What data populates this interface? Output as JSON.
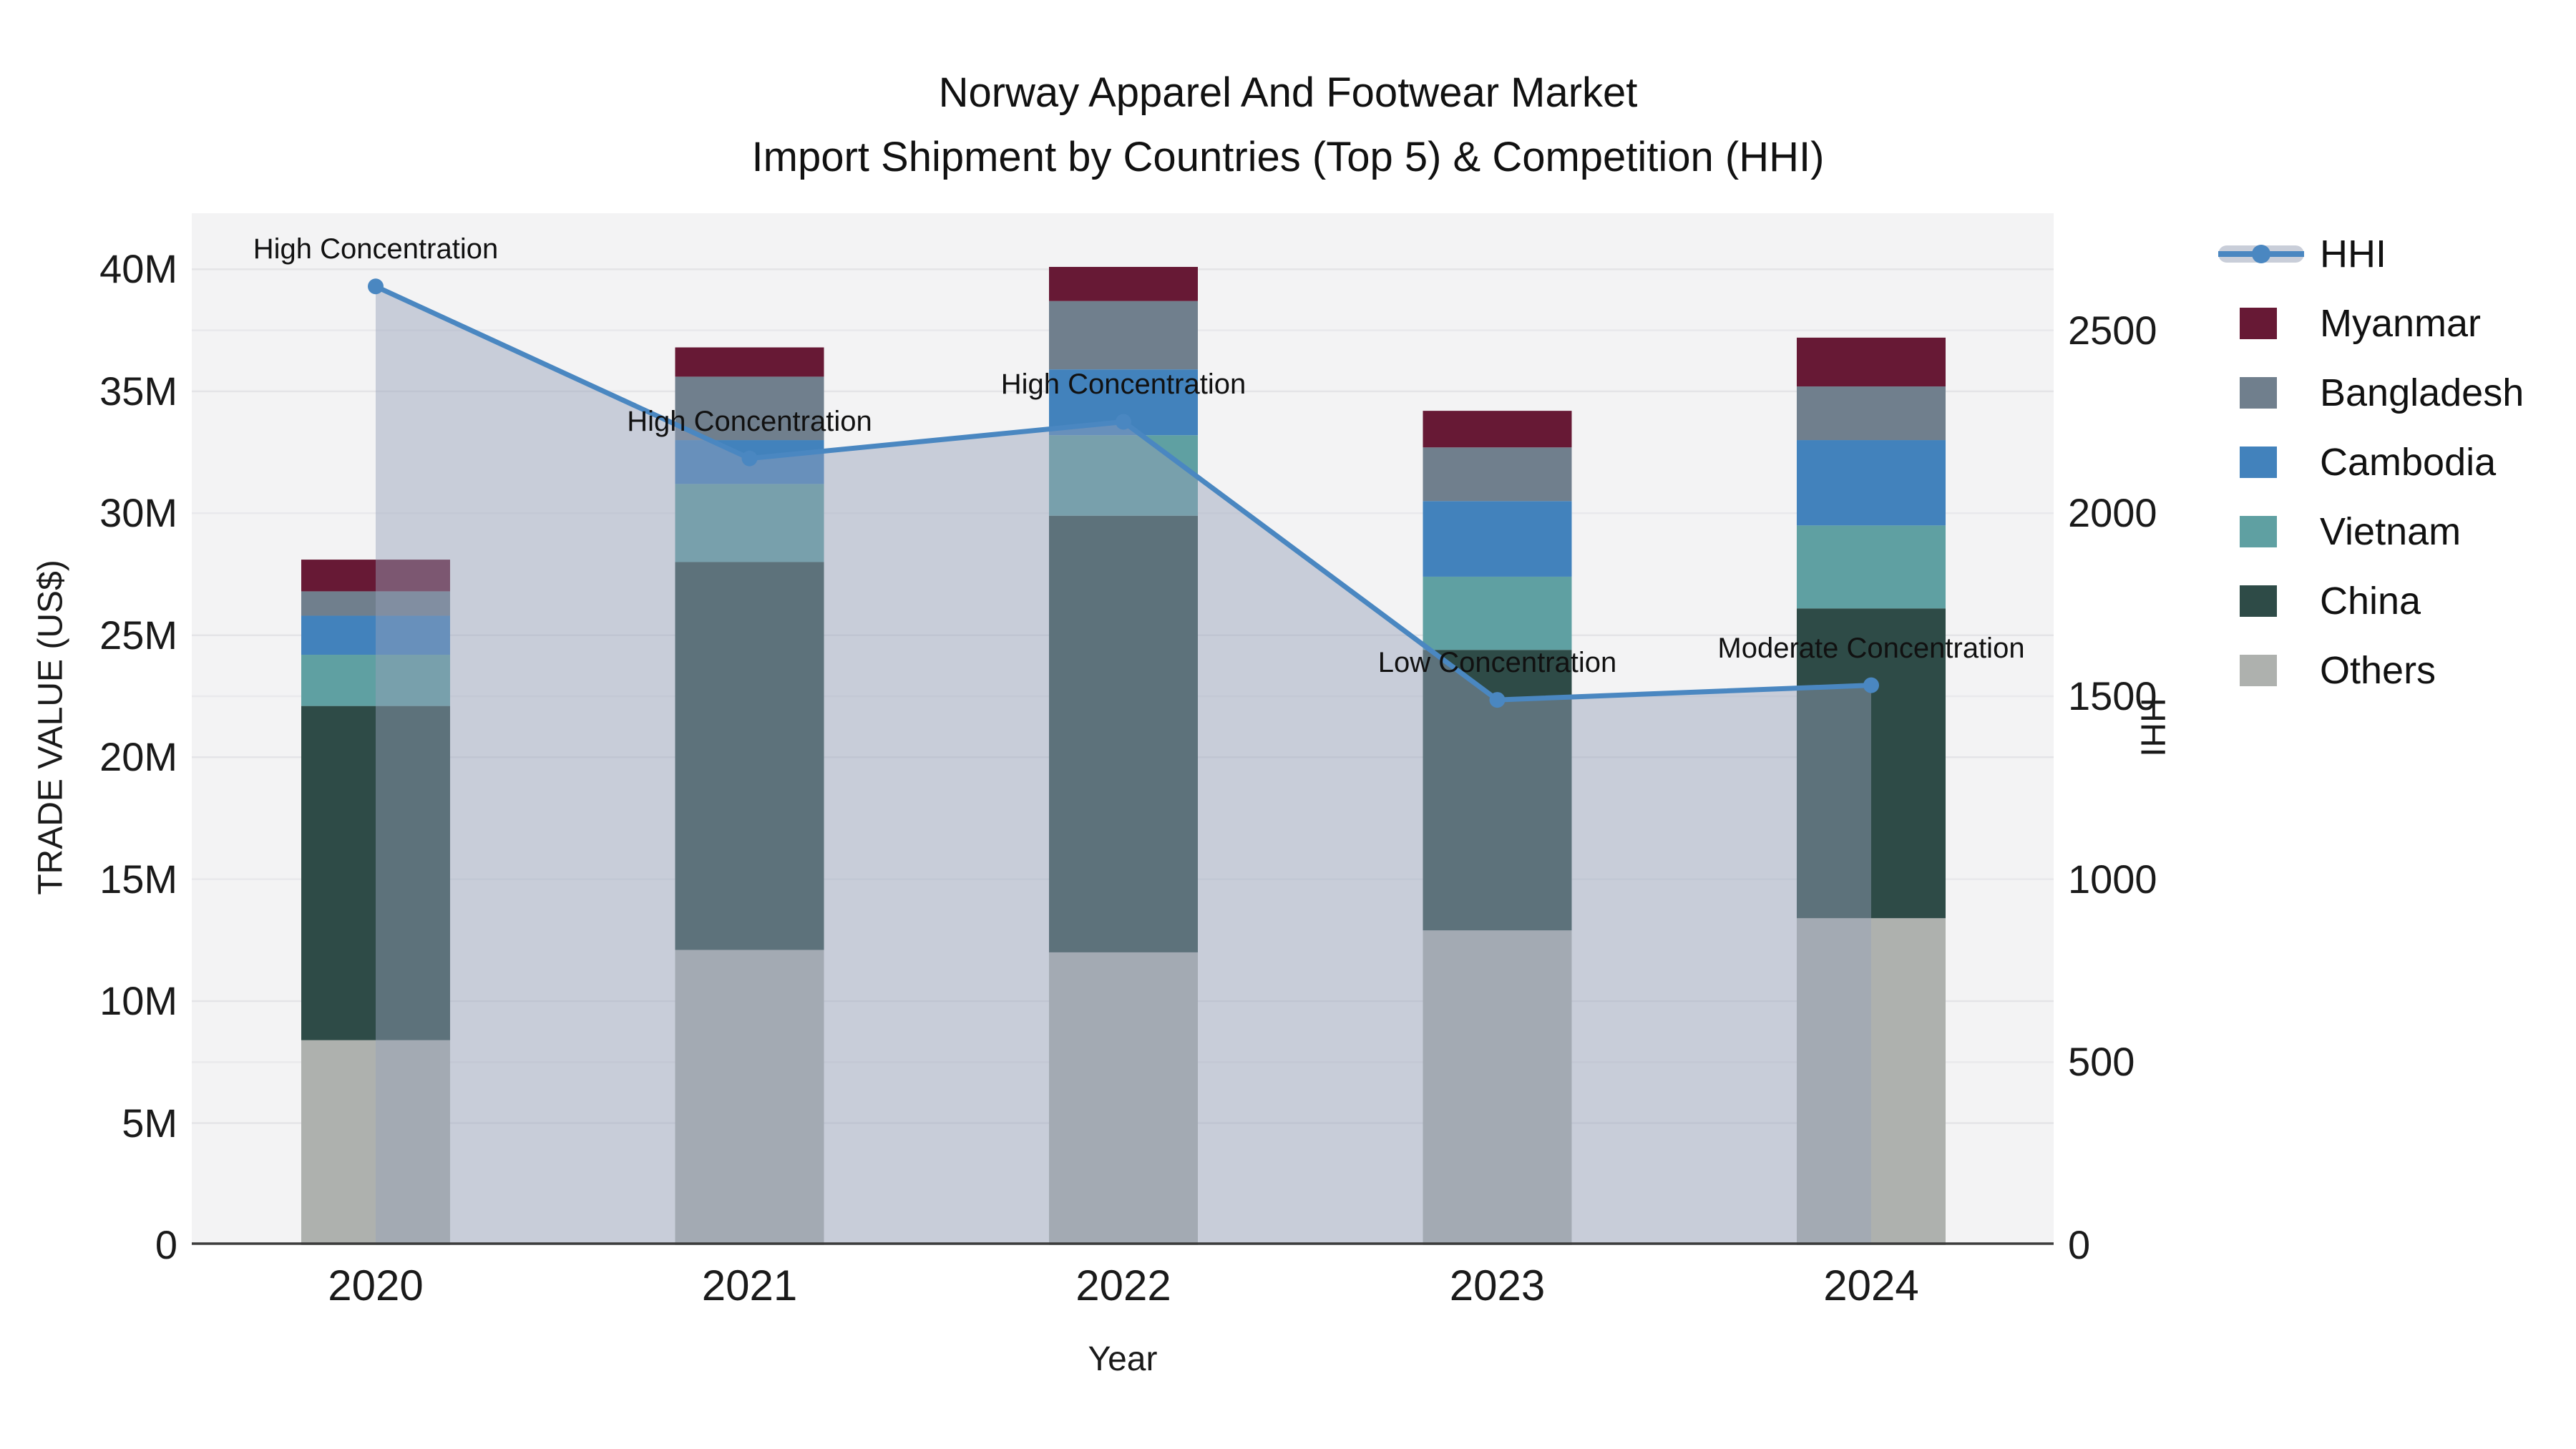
{
  "title": {
    "line1": "Norway Apparel And Footwear Market",
    "line2": "Import Shipment by Countries (Top 5) & Competition (HHI)"
  },
  "axes": {
    "x": {
      "title": "Year",
      "ticks": [
        "2020",
        "2021",
        "2022",
        "2023",
        "2024"
      ]
    },
    "y_left": {
      "title": "TRADE VALUE (US$)",
      "ticks": [
        "0",
        "5M",
        "10M",
        "15M",
        "20M",
        "25M",
        "30M",
        "35M",
        "40M"
      ],
      "tick_values": [
        0,
        5,
        10,
        15,
        20,
        25,
        30,
        35,
        40
      ]
    },
    "y_right": {
      "title": "HHI",
      "ticks": [
        "0",
        "500",
        "1000",
        "1500",
        "2000",
        "2500"
      ],
      "tick_values": [
        0,
        500,
        1000,
        1500,
        2000,
        2500
      ]
    }
  },
  "legend": {
    "items": [
      {
        "label": "HHI",
        "type": "line",
        "color": "#4a87c1",
        "band_color": "#c9ced9"
      },
      {
        "label": "Myanmar",
        "type": "swatch",
        "color": "#671935"
      },
      {
        "label": "Bangladesh",
        "type": "swatch",
        "color": "#707f8d"
      },
      {
        "label": "Cambodia",
        "type": "swatch",
        "color": "#4282bc"
      },
      {
        "label": "Vietnam",
        "type": "swatch",
        "color": "#5fa0a2"
      },
      {
        "label": "China",
        "type": "swatch",
        "color": "#2e4b47"
      },
      {
        "label": "Others",
        "type": "swatch",
        "color": "#aeb1ae"
      }
    ]
  },
  "annotations": [
    {
      "year": "2020",
      "text": "High Concentration"
    },
    {
      "year": "2021",
      "text": "High Concentration"
    },
    {
      "year": "2022",
      "text": "High Concentration"
    },
    {
      "year": "2023",
      "text": "Low Concentration"
    },
    {
      "year": "2024",
      "text": "Moderate Concentration"
    }
  ],
  "chart_data": {
    "type": "bar",
    "subtype": "stacked-bars-with-line",
    "title": "Norway Apparel And Footwear Market — Import Shipment by Countries (Top 5) & Competition (HHI)",
    "categories": [
      "2020",
      "2021",
      "2022",
      "2023",
      "2024"
    ],
    "bar_unit": "million US$",
    "series": [
      {
        "name": "Others",
        "color": "#aeb1ae",
        "values": [
          8.4,
          12.1,
          12.0,
          12.9,
          13.4
        ]
      },
      {
        "name": "China",
        "color": "#2e4b47",
        "values": [
          13.7,
          15.9,
          17.9,
          11.5,
          12.7
        ]
      },
      {
        "name": "Vietnam",
        "color": "#5fa0a2",
        "values": [
          2.1,
          3.2,
          3.3,
          3.0,
          3.4
        ]
      },
      {
        "name": "Cambodia",
        "color": "#4282bc",
        "values": [
          1.6,
          1.8,
          2.7,
          3.1,
          3.5
        ]
      },
      {
        "name": "Bangladesh",
        "color": "#707f8d",
        "values": [
          1.0,
          2.6,
          2.8,
          2.2,
          2.2
        ]
      },
      {
        "name": "Myanmar",
        "color": "#671935",
        "values": [
          1.3,
          1.2,
          1.4,
          1.5,
          2.0
        ]
      }
    ],
    "bar_totals": [
      28.1,
      36.8,
      40.1,
      34.2,
      37.2
    ],
    "line_series": {
      "name": "HHI",
      "color": "#4a87c1",
      "area_fill": "rgba(151,162,185,0.46)",
      "values": [
        2620,
        2150,
        2250,
        1490,
        1530
      ]
    },
    "xlabel": "Year",
    "ylabel_left": "TRADE VALUE (US$)",
    "ylabel_right": "HHI",
    "ylim_left": [
      0,
      42.3
    ],
    "ylim_right": [
      0,
      2820
    ],
    "grid": true,
    "legend_position": "outside-top-right",
    "colors": {
      "plot_background": "#f3f3f4",
      "figure_background": "#ffffff",
      "gridline_left": "#e4e4e7",
      "gridline_right": "#e9e9ec",
      "axis_line": "#3c3c3c"
    }
  }
}
